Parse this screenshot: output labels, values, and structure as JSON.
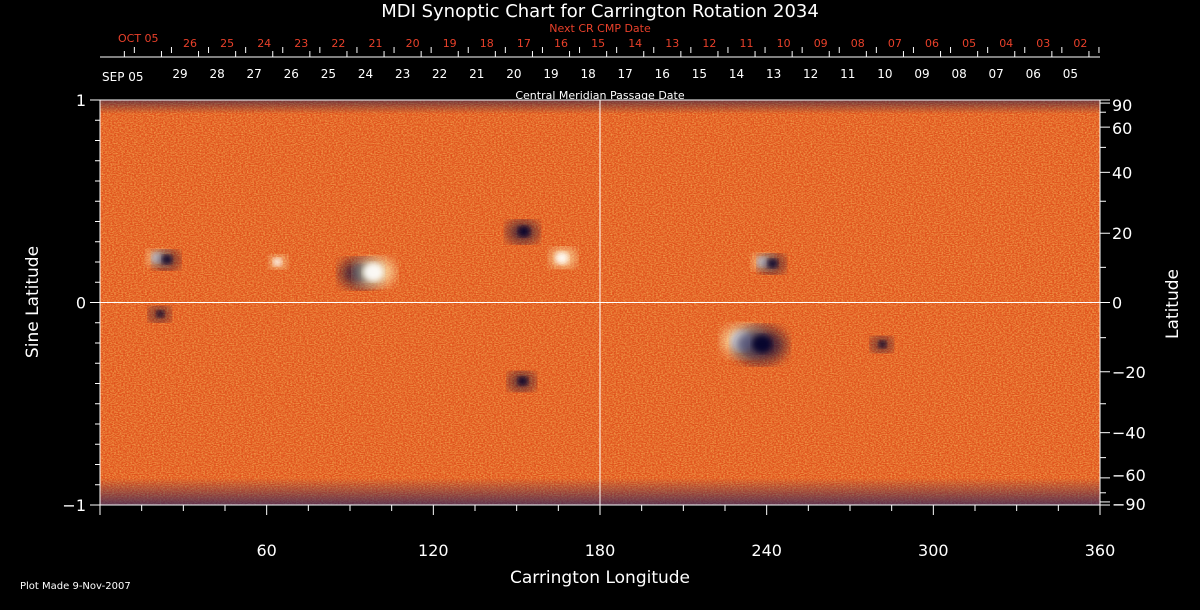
{
  "chart_data": {
    "type": "heatmap",
    "title": "MDI Synoptic Chart for Carrington Rotation 2034",
    "xlabel": "Carrington Longitude",
    "ylabel_left": "Sine Latitude",
    "ylabel_right": "Latitude",
    "xlim": [
      0,
      360
    ],
    "ylim": [
      -1,
      1
    ],
    "x_ticks": [
      60,
      120,
      180,
      240,
      300,
      360
    ],
    "y_ticks_left": [
      1,
      0,
      -1
    ],
    "y_ticks_right": [
      90,
      60,
      40,
      20,
      0,
      -20,
      -40,
      -60,
      -90
    ],
    "top_axis_label": "Central Meridian Passage Date",
    "top_axis_month": "SEP 05",
    "top_axis_dates": [
      "29",
      "28",
      "27",
      "26",
      "25",
      "24",
      "23",
      "22",
      "21",
      "20",
      "19",
      "18",
      "17",
      "16",
      "15",
      "14",
      "13",
      "12",
      "11",
      "10",
      "09",
      "08",
      "07",
      "06",
      "05"
    ],
    "next_cr_label": "Next CR CMP Date",
    "next_cr_month": "OCT 05",
    "next_cr_dates": [
      "26",
      "25",
      "24",
      "23",
      "22",
      "21",
      "20",
      "19",
      "18",
      "17",
      "16",
      "15",
      "14",
      "13",
      "12",
      "11",
      "10",
      "09",
      "08",
      "07",
      "06",
      "05",
      "04",
      "03",
      "02"
    ],
    "plot_note": "Plot Made  9-Nov-2007",
    "features": [
      {
        "lon": 234,
        "sinlat": -0.19,
        "polarity": "mixed",
        "strength": 1.0
      },
      {
        "lon": 91,
        "sinlat": 0.16,
        "polarity": "negative",
        "strength": 0.8
      },
      {
        "lon": 101,
        "sinlat": 0.15,
        "polarity": "positive",
        "strength": 0.9
      },
      {
        "lon": 168,
        "sinlat": 0.22,
        "polarity": "positive",
        "strength": 0.6
      },
      {
        "lon": 150,
        "sinlat": 0.36,
        "polarity": "negative",
        "strength": 0.6
      },
      {
        "lon": 240,
        "sinlat": 0.2,
        "polarity": "mixed",
        "strength": 0.5
      },
      {
        "lon": 22,
        "sinlat": 0.22,
        "polarity": "mixed",
        "strength": 0.5
      },
      {
        "lon": 65,
        "sinlat": 0.2,
        "polarity": "positive",
        "strength": 0.4
      },
      {
        "lon": 150,
        "sinlat": -0.38,
        "polarity": "negative",
        "strength": 0.5
      },
      {
        "lon": 280,
        "sinlat": -0.2,
        "polarity": "negative",
        "strength": 0.4
      },
      {
        "lon": 20,
        "sinlat": -0.05,
        "polarity": "negative",
        "strength": 0.4
      }
    ],
    "colors": {
      "background": "#000000",
      "field_base": "#e0521c",
      "positive": "#fff4c0",
      "negative": "#101040",
      "grid": "#ffffff",
      "next_cr": "#e8402a"
    }
  }
}
